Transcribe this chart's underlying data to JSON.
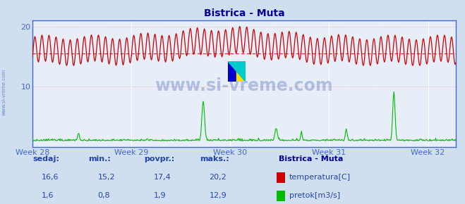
{
  "title": "Bistrica - Muta",
  "title_color": "#000099",
  "bg_color": "#d0dff0",
  "plot_bg_color": "#e8eef8",
  "grid_color": "#ffffff",
  "border_color": "#4466cc",
  "ylim": [
    0,
    21
  ],
  "yticks": [
    10,
    20
  ],
  "week_labels": [
    "Week 28",
    "Week 29",
    "Week 30",
    "Week 31",
    "Week 32"
  ],
  "week_positions": [
    0,
    168,
    336,
    504,
    672
  ],
  "total_points": 720,
  "watermark": "www.si-vreme.com",
  "watermark_color": "#2244aa",
  "watermark_alpha": 0.28,
  "temp_color": "#cc0000",
  "flow_color": "#00bb00",
  "temp_avg_line": 15.5,
  "temp_avg_color": "#cc0000",
  "legend_title": "Bistrica - Muta",
  "legend_title_color": "#000099",
  "legend_items": [
    {
      "label": "temperatura[C]",
      "color": "#cc0000"
    },
    {
      "label": "pretok[m3/s]",
      "color": "#00bb00"
    }
  ],
  "stats_headers": [
    "sedaj:",
    "min.:",
    "povpr.:",
    "maks.:"
  ],
  "stats_temp": [
    "16,6",
    "15,2",
    "17,4",
    "20,2"
  ],
  "stats_flow": [
    "1,6",
    "0,8",
    "1,9",
    "12,9"
  ],
  "tick_label_color": "#4466cc",
  "font_color": "#2244aa"
}
